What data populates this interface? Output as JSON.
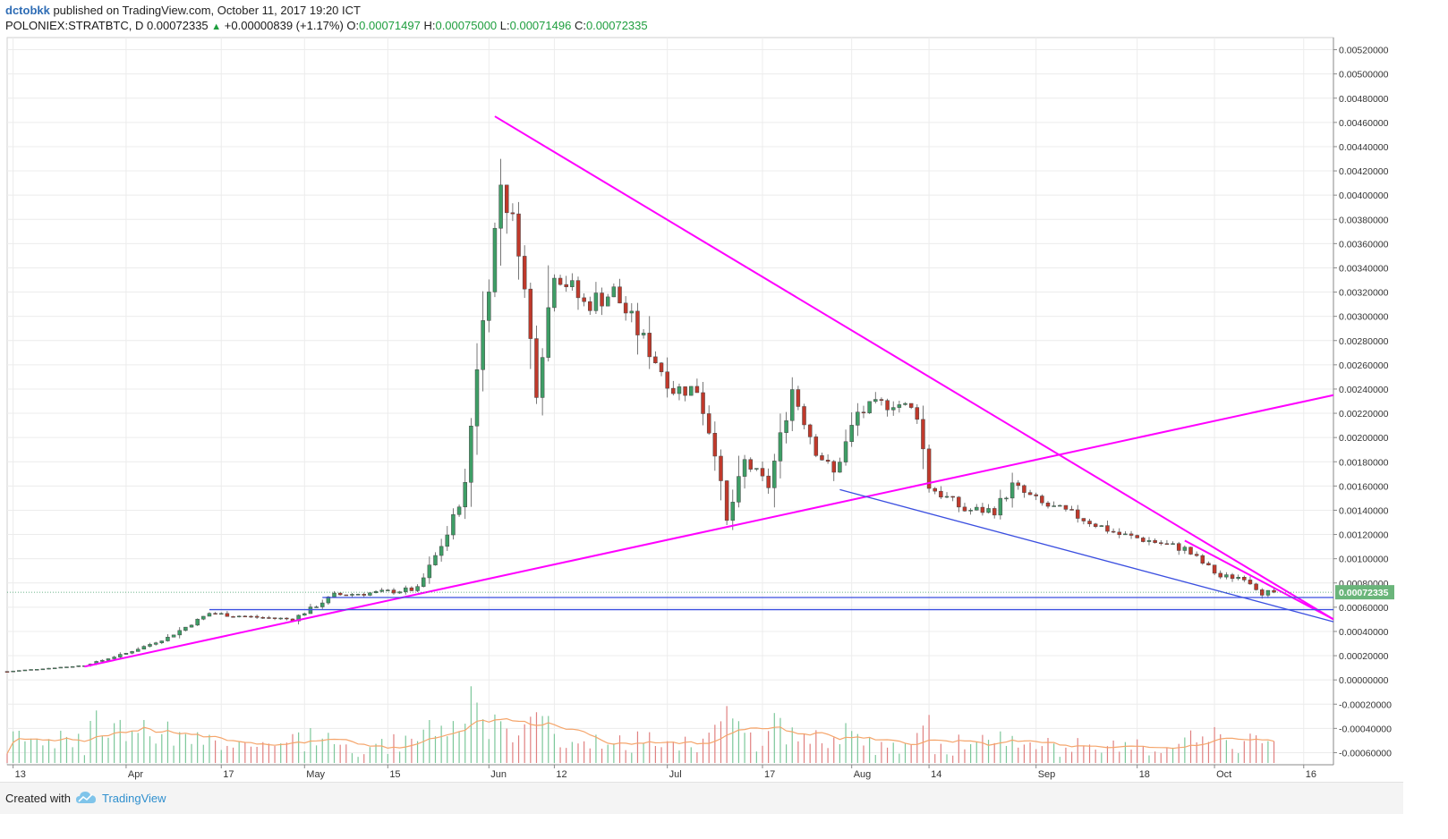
{
  "header": {
    "author": "dctobkk",
    "published_text": " published on TradingView.com, October 11, 2017 19:20 ICT",
    "symbol": "POLONIEX:STRATBTC, D",
    "last_price": "0.00072335",
    "change": "+0.00000839 (+1.17%)",
    "open_label": "O:",
    "open_value": "0.00071497",
    "high_label": "H:",
    "high_value": "0.00075000",
    "low_label": "L:",
    "low_value": "0.00071496",
    "close_label": "C:",
    "close_value": "0.00072335"
  },
  "footer": {
    "created_with": "Created with",
    "brand": "TradingView"
  },
  "colors": {
    "up": "#3e9e66",
    "down": "#c0392b",
    "trend_pink": "#ff00ff",
    "trend_blue": "#3b4fe0",
    "volume_ma": "#f5a56b",
    "grid": "#ececec",
    "price_tag": "#6ab57a"
  },
  "chart_data": {
    "type": "candlestick",
    "scale": "linear",
    "grid": true,
    "ylim": [
      -0.0007,
      0.0053
    ],
    "y_ticks": [
      "0.00520000",
      "0.00500000",
      "0.00480000",
      "0.00460000",
      "0.00440000",
      "0.00420000",
      "0.00400000",
      "0.00380000",
      "0.00360000",
      "0.00340000",
      "0.00320000",
      "0.00300000",
      "0.00280000",
      "0.00260000",
      "0.00240000",
      "0.00220000",
      "0.00200000",
      "0.00180000",
      "0.00160000",
      "0.00140000",
      "0.00120000",
      "0.00100000",
      "0.00080000",
      "0.00060000",
      "0.00040000",
      "0.00020000",
      "0.00000000",
      "-0.00020000",
      "-0.00040000",
      "-0.00060000"
    ],
    "y_tick_values": [
      0.0052,
      0.005,
      0.0048,
      0.0046,
      0.0044,
      0.0042,
      0.004,
      0.0038,
      0.0036,
      0.0034,
      0.0032,
      0.003,
      0.0028,
      0.0026,
      0.0024,
      0.0022,
      0.002,
      0.0018,
      0.0016,
      0.0014,
      0.0012,
      0.001,
      0.0008,
      0.0006,
      0.0004,
      0.0002,
      0,
      -0.0002,
      -0.0004,
      -0.0006
    ],
    "x_ticks": [
      {
        "label": "13",
        "date": "2017-03-13"
      },
      {
        "label": "Apr",
        "date": "2017-04-01"
      },
      {
        "label": "17",
        "date": "2017-04-17"
      },
      {
        "label": "May",
        "date": "2017-05-01"
      },
      {
        "label": "15",
        "date": "2017-05-15"
      },
      {
        "label": "Jun",
        "date": "2017-06-01"
      },
      {
        "label": "12",
        "date": "2017-06-12"
      },
      {
        "label": "Jul",
        "date": "2017-07-01"
      },
      {
        "label": "17",
        "date": "2017-07-17"
      },
      {
        "label": "Aug",
        "date": "2017-08-01"
      },
      {
        "label": "14",
        "date": "2017-08-14"
      },
      {
        "label": "Sep",
        "date": "2017-09-01"
      },
      {
        "label": "18",
        "date": "2017-09-18"
      },
      {
        "label": "Oct",
        "date": "2017-10-01"
      },
      {
        "label": "16",
        "date": "2017-10-16"
      }
    ],
    "x_range": [
      "2017-03-12",
      "2017-10-21"
    ],
    "current_price_tag": "0.00072335",
    "current_price": 0.00072335,
    "price_key_points": [
      [
        "2017-03-12",
        7e-05
      ],
      [
        "2017-03-25",
        0.00012
      ],
      [
        "2017-04-01",
        0.00022
      ],
      [
        "2017-04-08",
        0.00035
      ],
      [
        "2017-04-15",
        0.00055
      ],
      [
        "2017-04-22",
        0.00052
      ],
      [
        "2017-04-29",
        0.0005
      ],
      [
        "2017-05-06",
        0.0007
      ],
      [
        "2017-05-13",
        0.00072
      ],
      [
        "2017-05-20",
        0.00075
      ],
      [
        "2017-05-25",
        0.0012
      ],
      [
        "2017-05-28",
        0.0016
      ],
      [
        "2017-05-30",
        0.0026
      ],
      [
        "2017-06-01",
        0.0033
      ],
      [
        "2017-06-03",
        0.0041
      ],
      [
        "2017-06-06",
        0.0036
      ],
      [
        "2017-06-09",
        0.0024
      ],
      [
        "2017-06-12",
        0.0034
      ],
      [
        "2017-06-17",
        0.0031
      ],
      [
        "2017-06-22",
        0.0032
      ],
      [
        "2017-06-27",
        0.0028
      ],
      [
        "2017-07-02",
        0.0024
      ],
      [
        "2017-07-06",
        0.0024
      ],
      [
        "2017-07-09",
        0.0019
      ],
      [
        "2017-07-11",
        0.0013
      ],
      [
        "2017-07-14",
        0.0018
      ],
      [
        "2017-07-18",
        0.0016
      ],
      [
        "2017-07-22",
        0.0024
      ],
      [
        "2017-07-26",
        0.0019
      ],
      [
        "2017-07-29",
        0.0017
      ],
      [
        "2017-08-02",
        0.0022
      ],
      [
        "2017-08-08",
        0.0023
      ],
      [
        "2017-08-12",
        0.0022
      ],
      [
        "2017-08-14",
        0.0016
      ],
      [
        "2017-08-20",
        0.0014
      ],
      [
        "2017-08-25",
        0.0014
      ],
      [
        "2017-08-28",
        0.0016
      ],
      [
        "2017-09-02",
        0.00145
      ],
      [
        "2017-09-08",
        0.00135
      ],
      [
        "2017-09-15",
        0.0012
      ],
      [
        "2017-09-20",
        0.00115
      ],
      [
        "2017-09-26",
        0.00108
      ],
      [
        "2017-10-02",
        0.00085
      ],
      [
        "2017-10-06",
        0.00085
      ],
      [
        "2017-10-09",
        0.00072
      ],
      [
        "2017-10-11",
        0.00072335
      ]
    ],
    "trendlines": [
      {
        "color": "pink",
        "from": [
          "2017-06-02",
          0.00465
        ],
        "to": [
          "2017-10-21",
          0.0005
        ]
      },
      {
        "color": "pink",
        "from": [
          "2017-03-25",
          0.00011
        ],
        "to": [
          "2017-10-21",
          0.00235
        ]
      },
      {
        "color": "pink",
        "from": [
          "2017-09-26",
          0.00115
        ],
        "to": [
          "2017-10-21",
          0.0005
        ]
      },
      {
        "color": "blue",
        "from": [
          "2017-07-30",
          0.00157
        ],
        "to": [
          "2017-10-21",
          0.00048
        ]
      },
      {
        "color": "blue",
        "from": [
          "2017-04-15",
          0.00058
        ],
        "to": [
          "2017-10-21",
          0.00058
        ]
      },
      {
        "color": "blue",
        "from": [
          "2017-05-04",
          0.00068
        ],
        "to": [
          "2017-10-21",
          0.00068
        ]
      }
    ]
  }
}
